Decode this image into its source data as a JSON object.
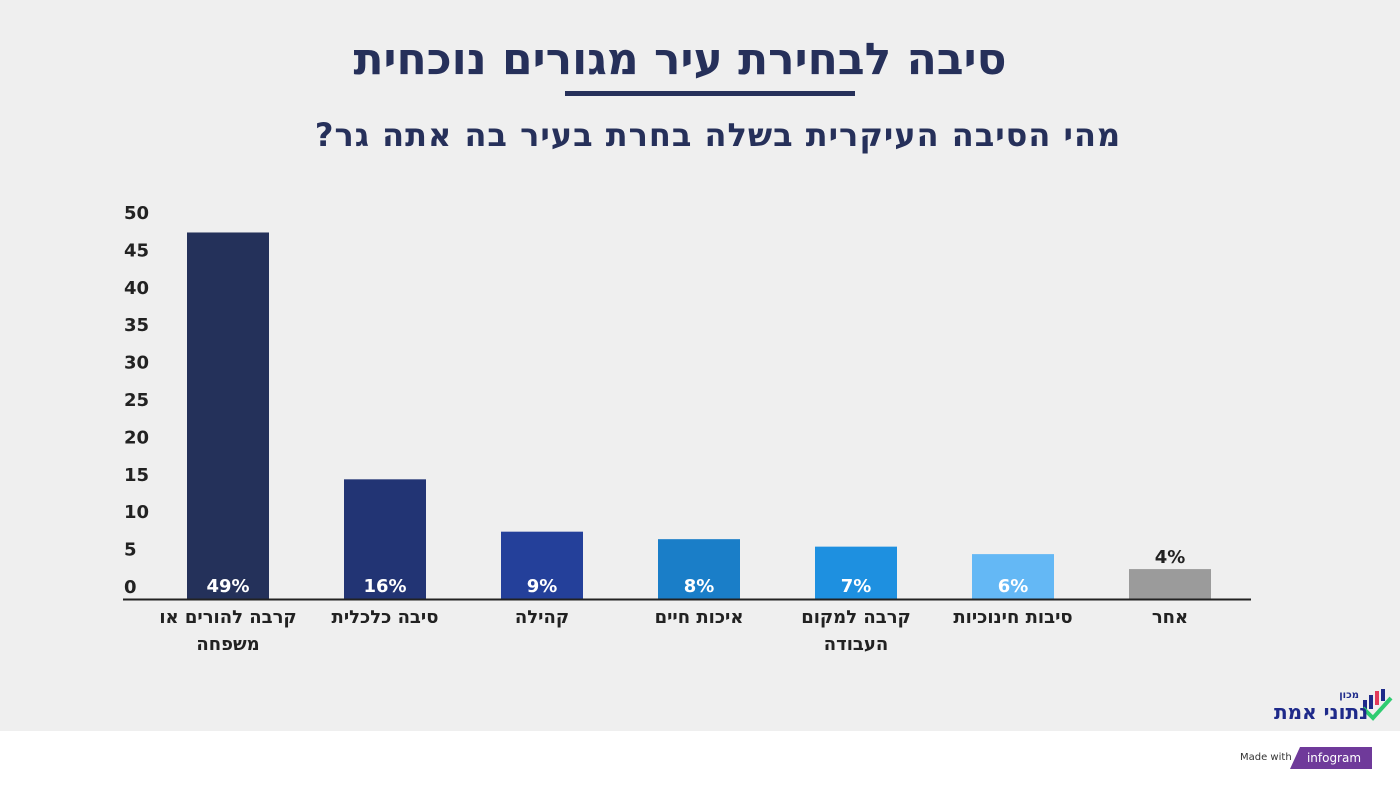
{
  "chart_data": {
    "type": "bar",
    "title": "סיבה לבחירת עיר מגורים נוכחית",
    "subtitle": "מהי הסיבה העיקרית בשלה בחרת בעיר בה אתה גר?",
    "categories": [
      [
        "קרבה להורים או",
        "משפחה"
      ],
      [
        "סיבה כלכלית"
      ],
      [
        "קהילה"
      ],
      [
        "איכות חיים"
      ],
      [
        "קרבה למקום",
        "העבודה"
      ],
      [
        "סיבות חינוכיות"
      ],
      [
        "אחר"
      ]
    ],
    "values": [
      49,
      16,
      9,
      8,
      7,
      6,
      4
    ],
    "data_labels": [
      "49%",
      "16%",
      "9%",
      "8%",
      "7%",
      "6%",
      "4%"
    ],
    "colors": [
      "#24315a",
      "#223474",
      "#24409a",
      "#1a7ec8",
      "#1e90e0",
      "#64b8f5",
      "#9b9b9b"
    ],
    "yticks": [
      "0",
      "5",
      "10",
      "15",
      "20",
      "25",
      "30",
      "35",
      "40",
      "45",
      "50"
    ],
    "ylim": [
      0,
      50
    ],
    "xlabel": "",
    "ylabel": "",
    "grid": false,
    "legend": "none"
  },
  "logo": {
    "small": "מכון",
    "big": "נתוני אמת"
  },
  "footer": {
    "made_with": "Made with",
    "brand": "infogram"
  }
}
